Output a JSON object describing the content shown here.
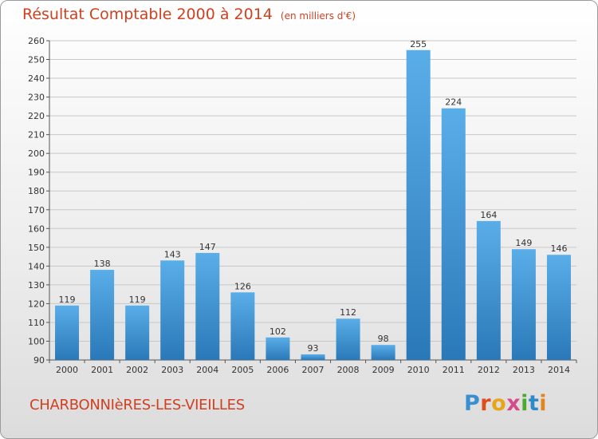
{
  "header": {
    "title": "Résultat Comptable 2000 à 2014",
    "unit": "(en milliers d'€)"
  },
  "commune": "CHARBONNIèRES-LES-VIEILLES",
  "logo": {
    "letters": [
      "P",
      "r",
      "o",
      "x",
      "i",
      "t",
      "i"
    ]
  },
  "colors": {
    "title": "#d04020",
    "bar_light": "#5aaee8",
    "bar_dark": "#2a78b8",
    "grid": "#c8c8c8"
  },
  "chart_data": {
    "type": "bar",
    "title": "Résultat Comptable 2000 à 2014",
    "subtitle": "(en milliers d'€)",
    "categories": [
      "2000",
      "2001",
      "2002",
      "2003",
      "2004",
      "2005",
      "2006",
      "2007",
      "2008",
      "2009",
      "2010",
      "2011",
      "2012",
      "2013",
      "2014"
    ],
    "values": [
      119,
      138,
      119,
      143,
      147,
      126,
      102,
      93,
      112,
      98,
      255,
      224,
      164,
      149,
      146
    ],
    "ylim": [
      90,
      260
    ],
    "ytick_step": 10,
    "grid": true,
    "data_labels": true
  }
}
